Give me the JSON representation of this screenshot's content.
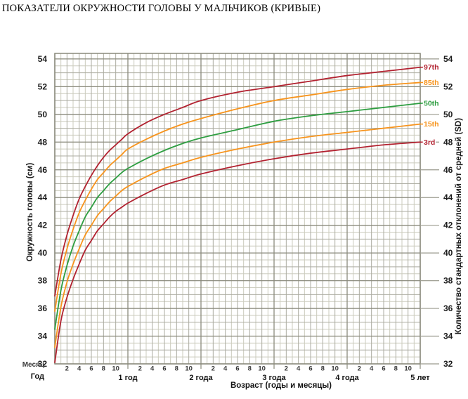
{
  "page_title": "ПОКАЗАТЕЛИ ОКРУЖНОСТИ ГОЛОВЫ У МАЛЬЧИКОВ (КРИВЫЕ)",
  "colors": {
    "percentile_red": "#b22230",
    "percentile_orange": "#f7941d",
    "percentile_green": "#2e9e41",
    "grid_minor": "#cbcbbd",
    "grid_mid": "#ababa0",
    "grid_major": "#8a8a7c",
    "tick_line": "#9a9a8e",
    "axis_text": "#1c1c1c"
  },
  "chart_data": {
    "type": "line",
    "title": "ПОКАЗАТЕЛИ ОКРУЖНОСТИ ГОЛОВЫ У МАЛЬЧИКОВ (КРИВЫЕ)",
    "xlabel": "Возраст (годы и месяцы)",
    "ylabel": "Окружность головы (см)",
    "ylabel_right": "Количество стандартных отклонений от средней (SD)",
    "x_axis_rows": {
      "months_label": "Месяц",
      "years_label": "Год"
    },
    "x_unit": "months",
    "xlim": [
      0,
      60
    ],
    "ylim": [
      32,
      54.4
    ],
    "grid": true,
    "legend_position": "curve-end-labels-right",
    "y_ticks": [
      32,
      34,
      36,
      38,
      40,
      42,
      44,
      46,
      48,
      50,
      52,
      54
    ],
    "month_ticks_per_year": [
      2,
      4,
      6,
      8,
      10
    ],
    "year_marks": [
      {
        "month": 12,
        "label": "1 год"
      },
      {
        "month": 24,
        "label": "2 года"
      },
      {
        "month": 36,
        "label": "3 года"
      },
      {
        "month": 48,
        "label": "4 года"
      },
      {
        "month": 60,
        "label": "5 лет"
      }
    ],
    "x": [
      0,
      1,
      2,
      3,
      4,
      5,
      6,
      7,
      8,
      9,
      10,
      11,
      12,
      15,
      18,
      21,
      24,
      30,
      36,
      42,
      48,
      54,
      60
    ],
    "series": [
      {
        "name": "97th",
        "color": "#b22230",
        "values": [
          36.9,
          39.5,
          41.3,
          42.7,
          43.9,
          44.8,
          45.6,
          46.3,
          46.9,
          47.4,
          47.8,
          48.2,
          48.6,
          49.4,
          50.0,
          50.5,
          51.0,
          51.6,
          52.0,
          52.4,
          52.8,
          53.1,
          53.4
        ]
      },
      {
        "name": "85th",
        "color": "#f7941d",
        "values": [
          35.8,
          38.5,
          40.3,
          41.7,
          42.9,
          43.8,
          44.6,
          45.3,
          45.8,
          46.3,
          46.7,
          47.1,
          47.5,
          48.2,
          48.8,
          49.3,
          49.7,
          50.4,
          51.0,
          51.4,
          51.8,
          52.1,
          52.3
        ]
      },
      {
        "name": "50th",
        "color": "#2e9e41",
        "values": [
          34.5,
          37.3,
          39.1,
          40.5,
          41.6,
          42.6,
          43.3,
          44.0,
          44.5,
          45.0,
          45.4,
          45.8,
          46.1,
          46.8,
          47.4,
          47.9,
          48.3,
          48.9,
          49.5,
          49.9,
          50.2,
          50.5,
          50.8
        ]
      },
      {
        "name": "15th",
        "color": "#f7941d",
        "values": [
          33.2,
          36.1,
          37.9,
          39.2,
          40.3,
          41.3,
          42.0,
          42.7,
          43.2,
          43.7,
          44.1,
          44.5,
          44.8,
          45.5,
          46.1,
          46.5,
          46.9,
          47.5,
          48.0,
          48.4,
          48.7,
          49.0,
          49.3
        ]
      },
      {
        "name": "3rd",
        "color": "#b22230",
        "values": [
          32.1,
          35.1,
          36.8,
          38.1,
          39.2,
          40.2,
          40.9,
          41.6,
          42.1,
          42.6,
          43.0,
          43.3,
          43.6,
          44.3,
          44.9,
          45.3,
          45.7,
          46.3,
          46.8,
          47.2,
          47.5,
          47.8,
          48.0
        ]
      }
    ]
  }
}
